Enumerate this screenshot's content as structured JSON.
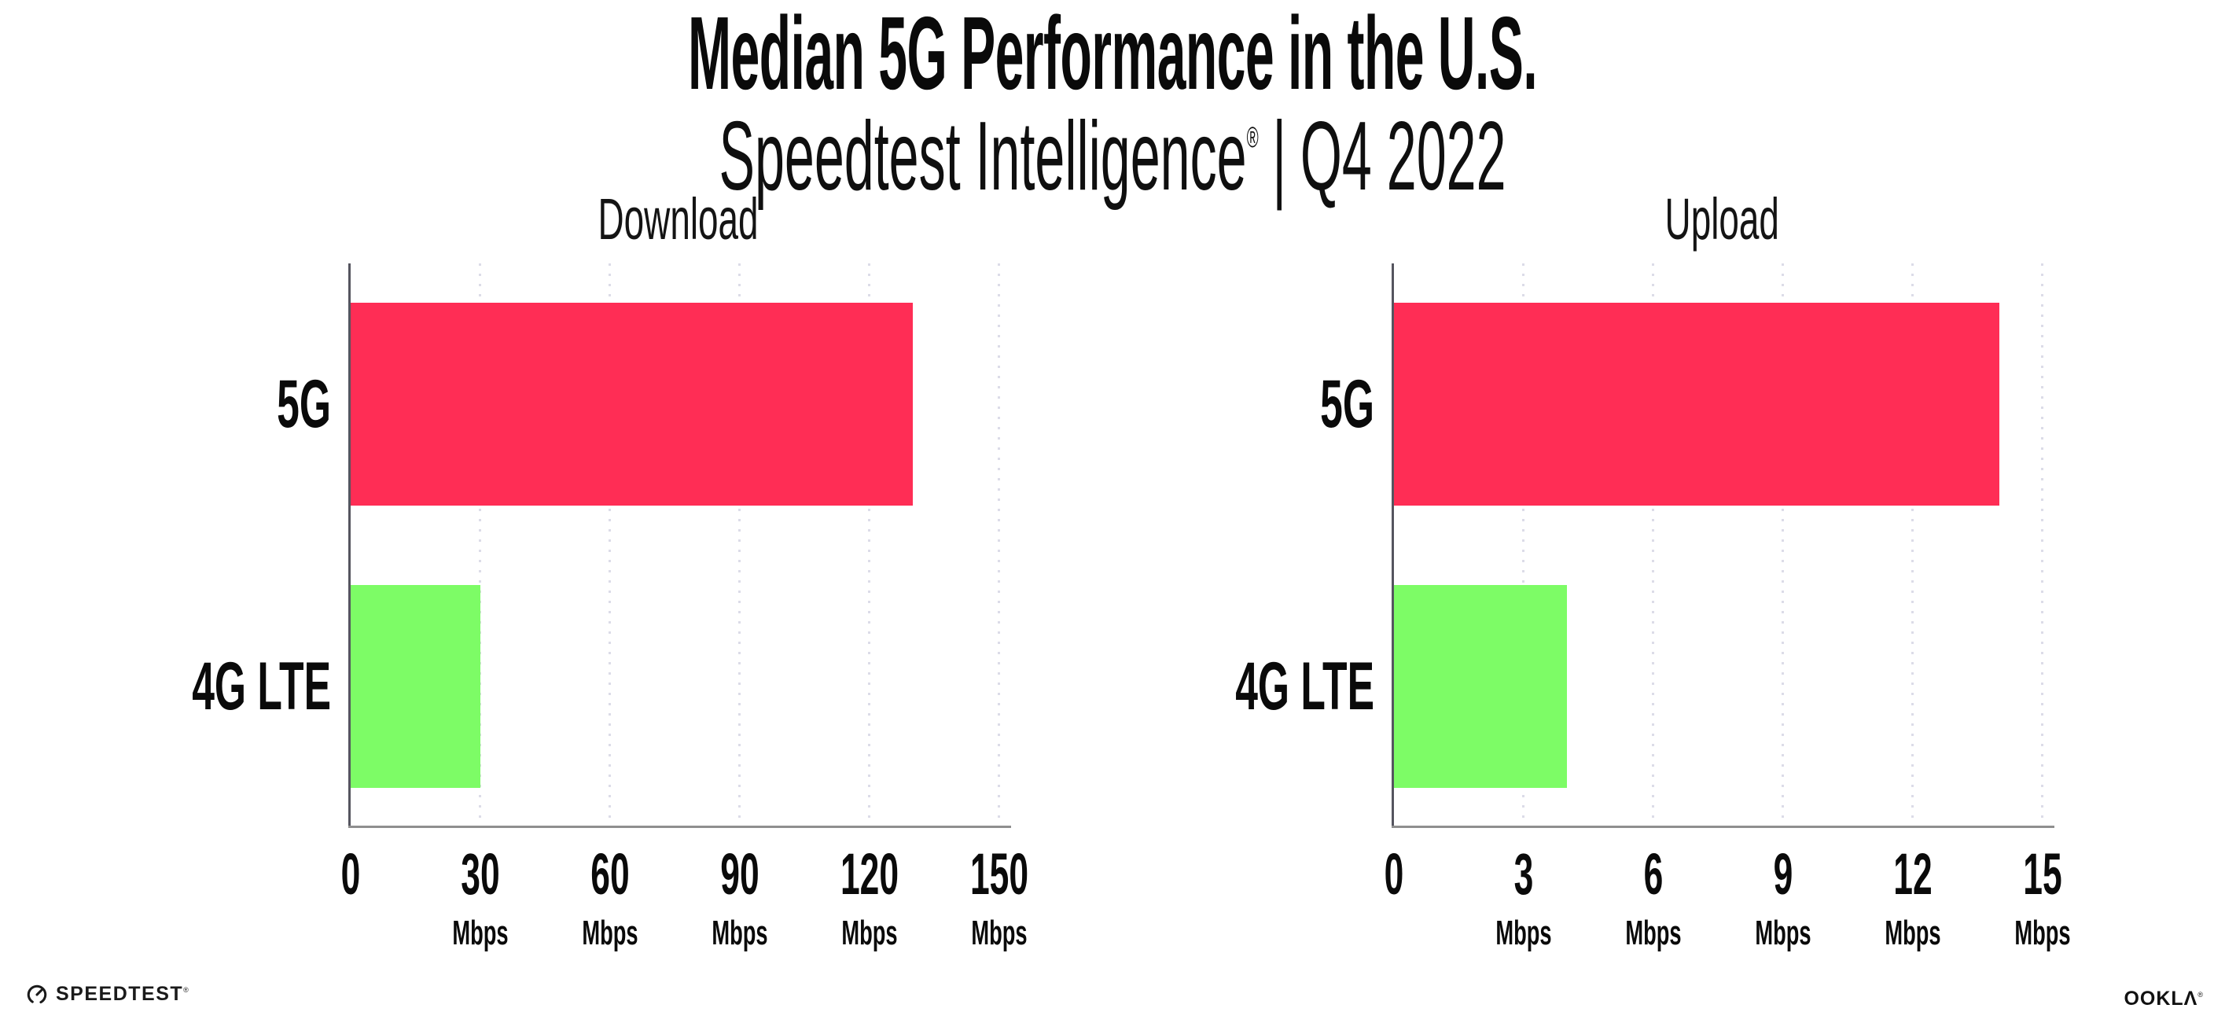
{
  "header": {
    "title": "Median 5G Performance in the U.S.",
    "subtitle_brand": "Speedtest Intelligence",
    "subtitle_reg": "®",
    "subtitle_sep": "|",
    "subtitle_period": "Q4 2022"
  },
  "chart_data": [
    {
      "type": "bar",
      "orientation": "horizontal",
      "title": "Download",
      "categories": [
        "5G",
        "4G LTE"
      ],
      "values": [
        130,
        30
      ],
      "unit": "Mbps",
      "xlim": [
        0,
        150
      ],
      "xticks": [
        0,
        30,
        60,
        90,
        120,
        150
      ],
      "bar_colors": [
        "#FF2D55",
        "#7DFC66"
      ],
      "grid": "vertical-dotted",
      "legend": "none"
    },
    {
      "type": "bar",
      "orientation": "horizontal",
      "title": "Upload",
      "categories": [
        "5G",
        "4G LTE"
      ],
      "values": [
        14,
        4
      ],
      "unit": "Mbps",
      "xlim": [
        0,
        15
      ],
      "xticks": [
        0,
        3,
        6,
        9,
        12,
        15
      ],
      "bar_colors": [
        "#FF2D55",
        "#7DFC66"
      ],
      "grid": "vertical-dotted",
      "legend": "none"
    }
  ],
  "styles": {
    "bar_color_5g": "#FF2D55",
    "bar_color_4g_lte": "#7DFC66",
    "gridline_color": "#dcdce8",
    "y_axis_color": "#55555f",
    "x_axis_color": "#8f8f8f",
    "text_color": "#0a0a0a"
  },
  "footer": {
    "speedtest_label": "SPEEDTEST",
    "speedtest_reg": "®",
    "ookla_label": "OOKLΛ",
    "ookla_reg": "®"
  }
}
